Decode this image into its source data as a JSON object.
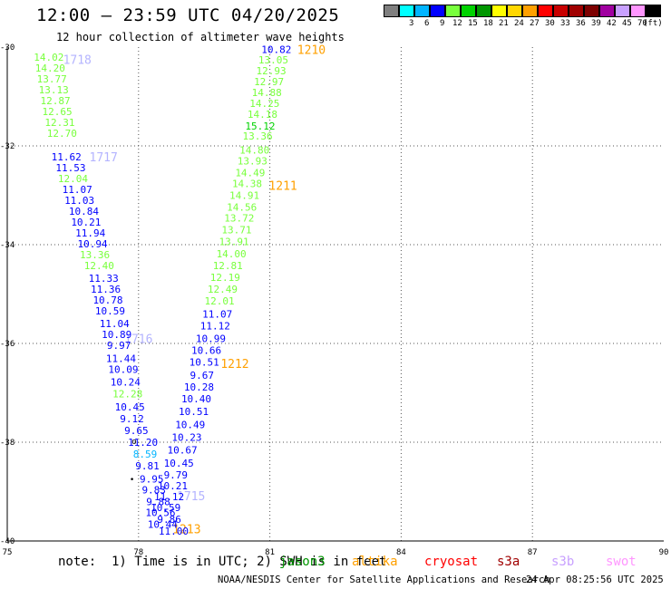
{
  "header": {
    "title": "12:00 — 23:59 UTC 04/20/2025",
    "subtitle": "12 hour collection of altimeter wave heights"
  },
  "color_scale": {
    "unit_label": "(ft)",
    "bins": [
      {
        "label": "",
        "color": "#7f7f7f"
      },
      {
        "label": "3",
        "color": "#00ffff"
      },
      {
        "label": "6",
        "color": "#00b4ff"
      },
      {
        "label": "9",
        "color": "#0000ff"
      },
      {
        "label": "12",
        "color": "#78ff3c"
      },
      {
        "label": "15",
        "color": "#00d200"
      },
      {
        "label": "18",
        "color": "#009600"
      },
      {
        "label": "21",
        "color": "#ffff00"
      },
      {
        "label": "24",
        "color": "#ffd700"
      },
      {
        "label": "27",
        "color": "#ffa000"
      },
      {
        "label": "30",
        "color": "#ff0000"
      },
      {
        "label": "33",
        "color": "#c80000"
      },
      {
        "label": "36",
        "color": "#a00000"
      },
      {
        "label": "39",
        "color": "#7d0000"
      },
      {
        "label": "42",
        "color": "#a000a0"
      },
      {
        "label": "45",
        "color": "#c8a0ff"
      },
      {
        "label": "70",
        "color": "#ff96ff"
      },
      {
        "label": "",
        "color": "#000000"
      }
    ]
  },
  "chart_data": {
    "type": "scatter",
    "xlim": [
      75,
      90
    ],
    "ylim": [
      -40,
      -30
    ],
    "x_ticks": [
      "75",
      "78",
      "81",
      "84",
      "87",
      "90"
    ],
    "y_ticks": [
      "-30",
      "-32",
      "-34",
      "-36",
      "-38",
      "-40"
    ],
    "grid": true,
    "tracks": [
      {
        "id": "1718",
        "label": "1718",
        "label_color": "#b4b4ff",
        "label_lon": 76.6,
        "label_lat": -30.25
      },
      {
        "id": "1717",
        "label": "1717",
        "label_color": "#b4b4ff",
        "label_lon": 77.2,
        "label_lat": -32.22
      },
      {
        "id": "1716",
        "label": "1716",
        "label_color": "#b4b4ff",
        "label_lon": 78.0,
        "label_lat": -35.9
      },
      {
        "id": "1715",
        "label": "1715",
        "label_color": "#b4b4ff",
        "label_lon": 79.2,
        "label_lat": -39.08
      },
      {
        "id": "1210",
        "label": "1210",
        "label_color": "#ffa000",
        "label_lon": 81.95,
        "label_lat": -30.05
      },
      {
        "id": "1211",
        "label": "1211",
        "label_color": "#ffa000",
        "label_lon": 81.3,
        "label_lat": -32.8
      },
      {
        "id": "1212",
        "label": "1212",
        "label_color": "#ffa000",
        "label_lon": 80.2,
        "label_lat": -36.4
      },
      {
        "id": "1213",
        "label": "1213",
        "label_color": "#ffa000",
        "label_lon": 79.1,
        "label_lat": -39.75
      }
    ],
    "points": [
      {
        "lon": 75.95,
        "lat": -30.2,
        "v": "14.02",
        "c": "#78ff3c"
      },
      {
        "lon": 75.98,
        "lat": -30.42,
        "v": "14.20",
        "c": "#78ff3c"
      },
      {
        "lon": 76.02,
        "lat": -30.64,
        "v": "13.77",
        "c": "#78ff3c"
      },
      {
        "lon": 76.06,
        "lat": -30.86,
        "v": "13.13",
        "c": "#78ff3c"
      },
      {
        "lon": 76.1,
        "lat": -31.08,
        "v": "12.87",
        "c": "#78ff3c"
      },
      {
        "lon": 76.14,
        "lat": -31.3,
        "v": "12.65",
        "c": "#78ff3c"
      },
      {
        "lon": 76.2,
        "lat": -31.52,
        "v": "12.31",
        "c": "#78ff3c"
      },
      {
        "lon": 76.25,
        "lat": -31.74,
        "v": "12.70",
        "c": "#78ff3c"
      },
      {
        "lon": 76.35,
        "lat": -32.22,
        "v": "11.62",
        "c": "#0000ff"
      },
      {
        "lon": 76.45,
        "lat": -32.44,
        "v": "11.53",
        "c": "#0000ff"
      },
      {
        "lon": 76.5,
        "lat": -32.66,
        "v": "12.04",
        "c": "#78ff3c"
      },
      {
        "lon": 76.6,
        "lat": -32.88,
        "v": "11.07",
        "c": "#0000ff"
      },
      {
        "lon": 76.65,
        "lat": -33.1,
        "v": "11.03",
        "c": "#0000ff"
      },
      {
        "lon": 76.75,
        "lat": -33.32,
        "v": "10.84",
        "c": "#0000ff"
      },
      {
        "lon": 76.8,
        "lat": -33.54,
        "v": "10.21",
        "c": "#0000ff"
      },
      {
        "lon": 76.9,
        "lat": -33.76,
        "v": "11.94",
        "c": "#0000ff"
      },
      {
        "lon": 76.95,
        "lat": -33.98,
        "v": "10.94",
        "c": "#0000ff"
      },
      {
        "lon": 77.0,
        "lat": -34.2,
        "v": "13.36",
        "c": "#78ff3c"
      },
      {
        "lon": 77.1,
        "lat": -34.42,
        "v": "12.40",
        "c": "#78ff3c"
      },
      {
        "lon": 77.2,
        "lat": -34.68,
        "v": "11.33",
        "c": "#0000ff"
      },
      {
        "lon": 77.25,
        "lat": -34.9,
        "v": "11.36",
        "c": "#0000ff"
      },
      {
        "lon": 77.3,
        "lat": -35.12,
        "v": "10.78",
        "c": "#0000ff"
      },
      {
        "lon": 77.35,
        "lat": -35.34,
        "v": "10.59",
        "c": "#0000ff"
      },
      {
        "lon": 77.45,
        "lat": -35.6,
        "v": "11.04",
        "c": "#0000ff"
      },
      {
        "lon": 77.5,
        "lat": -35.82,
        "v": "10.89",
        "c": "#0000ff"
      },
      {
        "lon": 77.55,
        "lat": -36.04,
        "v": "9.97",
        "c": "#0000ff"
      },
      {
        "lon": 77.6,
        "lat": -36.3,
        "v": "11.44",
        "c": "#0000ff"
      },
      {
        "lon": 77.65,
        "lat": -36.52,
        "v": "10.09",
        "c": "#0000ff"
      },
      {
        "lon": 77.7,
        "lat": -36.78,
        "v": "10.24",
        "c": "#0000ff"
      },
      {
        "lon": 77.75,
        "lat": -37.02,
        "v": "12.28",
        "c": "#78ff3c"
      },
      {
        "lon": 77.8,
        "lat": -37.28,
        "v": "10.45",
        "c": "#0000ff"
      },
      {
        "lon": 77.85,
        "lat": -37.52,
        "v": "9.12",
        "c": "#0000ff"
      },
      {
        "lon": 77.95,
        "lat": -37.76,
        "v": "9.65",
        "c": "#0000ff"
      },
      {
        "lon": 78.1,
        "lat": -38.0,
        "v": "11.20",
        "c": "#0000ff"
      },
      {
        "lon": 78.15,
        "lat": -38.24,
        "v": "8.59",
        "c": "#00b4ff"
      },
      {
        "lon": 78.2,
        "lat": -38.48,
        "v": "9.81",
        "c": "#0000ff"
      },
      {
        "lon": 78.3,
        "lat": -38.74,
        "v": "9.95",
        "c": "#0000ff"
      },
      {
        "lon": 78.35,
        "lat": -38.96,
        "v": "9.83",
        "c": "#0000ff"
      },
      {
        "lon": 78.45,
        "lat": -39.2,
        "v": "9.88",
        "c": "#0000ff"
      },
      {
        "lon": 78.5,
        "lat": -39.42,
        "v": "10.56",
        "c": "#0000ff"
      },
      {
        "lon": 78.55,
        "lat": -39.66,
        "v": "10.44",
        "c": "#0000ff"
      },
      {
        "lon": 81.15,
        "lat": -30.05,
        "v": "10.82",
        "c": "#0000ff"
      },
      {
        "lon": 81.08,
        "lat": -30.26,
        "v": "13.05",
        "c": "#78ff3c"
      },
      {
        "lon": 81.03,
        "lat": -30.48,
        "v": "12.93",
        "c": "#78ff3c"
      },
      {
        "lon": 80.98,
        "lat": -30.7,
        "v": "12.97",
        "c": "#78ff3c"
      },
      {
        "lon": 80.93,
        "lat": -30.92,
        "v": "14.88",
        "c": "#78ff3c"
      },
      {
        "lon": 80.88,
        "lat": -31.14,
        "v": "14.25",
        "c": "#78ff3c"
      },
      {
        "lon": 80.83,
        "lat": -31.36,
        "v": "14.18",
        "c": "#78ff3c"
      },
      {
        "lon": 80.78,
        "lat": -31.6,
        "v": "15.12",
        "c": "#00d200"
      },
      {
        "lon": 80.72,
        "lat": -31.8,
        "v": "13.36",
        "c": "#78ff3c"
      },
      {
        "lon": 80.65,
        "lat": -32.08,
        "v": "14.80",
        "c": "#78ff3c"
      },
      {
        "lon": 80.6,
        "lat": -32.3,
        "v": "13.93",
        "c": "#78ff3c"
      },
      {
        "lon": 80.55,
        "lat": -32.54,
        "v": "14.49",
        "c": "#78ff3c"
      },
      {
        "lon": 80.48,
        "lat": -32.76,
        "v": "14.38",
        "c": "#78ff3c"
      },
      {
        "lon": 80.42,
        "lat": -33.0,
        "v": "14.91",
        "c": "#78ff3c"
      },
      {
        "lon": 80.36,
        "lat": -33.24,
        "v": "14.56",
        "c": "#78ff3c"
      },
      {
        "lon": 80.3,
        "lat": -33.46,
        "v": "13.72",
        "c": "#78ff3c"
      },
      {
        "lon": 80.24,
        "lat": -33.7,
        "v": "13.71",
        "c": "#78ff3c"
      },
      {
        "lon": 80.18,
        "lat": -33.94,
        "v": "13.91",
        "c": "#78ff3c"
      },
      {
        "lon": 80.12,
        "lat": -34.18,
        "v": "14.00",
        "c": "#78ff3c"
      },
      {
        "lon": 80.04,
        "lat": -34.42,
        "v": "12.81",
        "c": "#78ff3c"
      },
      {
        "lon": 79.98,
        "lat": -34.66,
        "v": "12.19",
        "c": "#78ff3c"
      },
      {
        "lon": 79.92,
        "lat": -34.9,
        "v": "12.49",
        "c": "#78ff3c"
      },
      {
        "lon": 79.85,
        "lat": -35.14,
        "v": "12.01",
        "c": "#78ff3c"
      },
      {
        "lon": 79.8,
        "lat": -35.4,
        "v": "11.07",
        "c": "#0000ff"
      },
      {
        "lon": 79.75,
        "lat": -35.64,
        "v": "11.12",
        "c": "#0000ff"
      },
      {
        "lon": 79.65,
        "lat": -35.9,
        "v": "10.99",
        "c": "#0000ff"
      },
      {
        "lon": 79.55,
        "lat": -36.14,
        "v": "10.66",
        "c": "#0000ff"
      },
      {
        "lon": 79.5,
        "lat": -36.38,
        "v": "10.51",
        "c": "#0000ff"
      },
      {
        "lon": 79.45,
        "lat": -36.64,
        "v": "9.67",
        "c": "#0000ff"
      },
      {
        "lon": 79.38,
        "lat": -36.88,
        "v": "10.28",
        "c": "#0000ff"
      },
      {
        "lon": 79.32,
        "lat": -37.12,
        "v": "10.40",
        "c": "#0000ff"
      },
      {
        "lon": 79.26,
        "lat": -37.38,
        "v": "10.51",
        "c": "#0000ff"
      },
      {
        "lon": 79.18,
        "lat": -37.64,
        "v": "10.49",
        "c": "#0000ff"
      },
      {
        "lon": 79.1,
        "lat": -37.9,
        "v": "10.23",
        "c": "#0000ff"
      },
      {
        "lon": 79.0,
        "lat": -38.16,
        "v": "10.67",
        "c": "#0000ff"
      },
      {
        "lon": 78.92,
        "lat": -38.42,
        "v": "10.45",
        "c": "#0000ff"
      },
      {
        "lon": 78.85,
        "lat": -38.66,
        "v": "9.79",
        "c": "#0000ff"
      },
      {
        "lon": 78.78,
        "lat": -38.88,
        "v": "10.21",
        "c": "#0000ff"
      },
      {
        "lon": 78.7,
        "lat": -39.1,
        "v": "11.12",
        "c": "#0000ff"
      },
      {
        "lon": 78.62,
        "lat": -39.32,
        "v": "10.59",
        "c": "#0000ff"
      },
      {
        "lon": 78.7,
        "lat": -39.56,
        "v": "9.86",
        "c": "#0000ff"
      },
      {
        "lon": 78.8,
        "lat": -39.8,
        "v": "11.00",
        "c": "#0000ff"
      }
    ],
    "markers": [
      {
        "lon": 77.9,
        "lat": -37.98,
        "symbol": "o"
      },
      {
        "lon": 77.85,
        "lat": -38.75,
        "symbol": "•"
      }
    ]
  },
  "footer": {
    "note": "note:  1) Time is in UTC; 2) SWH is in feet",
    "satellites": [
      {
        "name": "jason3",
        "color": "#009600"
      },
      {
        "name": "altika",
        "color": "#ffa000"
      },
      {
        "name": "cryosat",
        "color": "#ff0000"
      },
      {
        "name": "s3a",
        "color": "#a00000"
      },
      {
        "name": "s3b",
        "color": "#c8a0ff"
      },
      {
        "name": "swot",
        "color": "#ff96ff"
      }
    ],
    "credit": "NOAA/NESDIS Center for Satellite Applications and Research",
    "timestamp": "24 Apr 08:25:56 UTC 2025"
  }
}
